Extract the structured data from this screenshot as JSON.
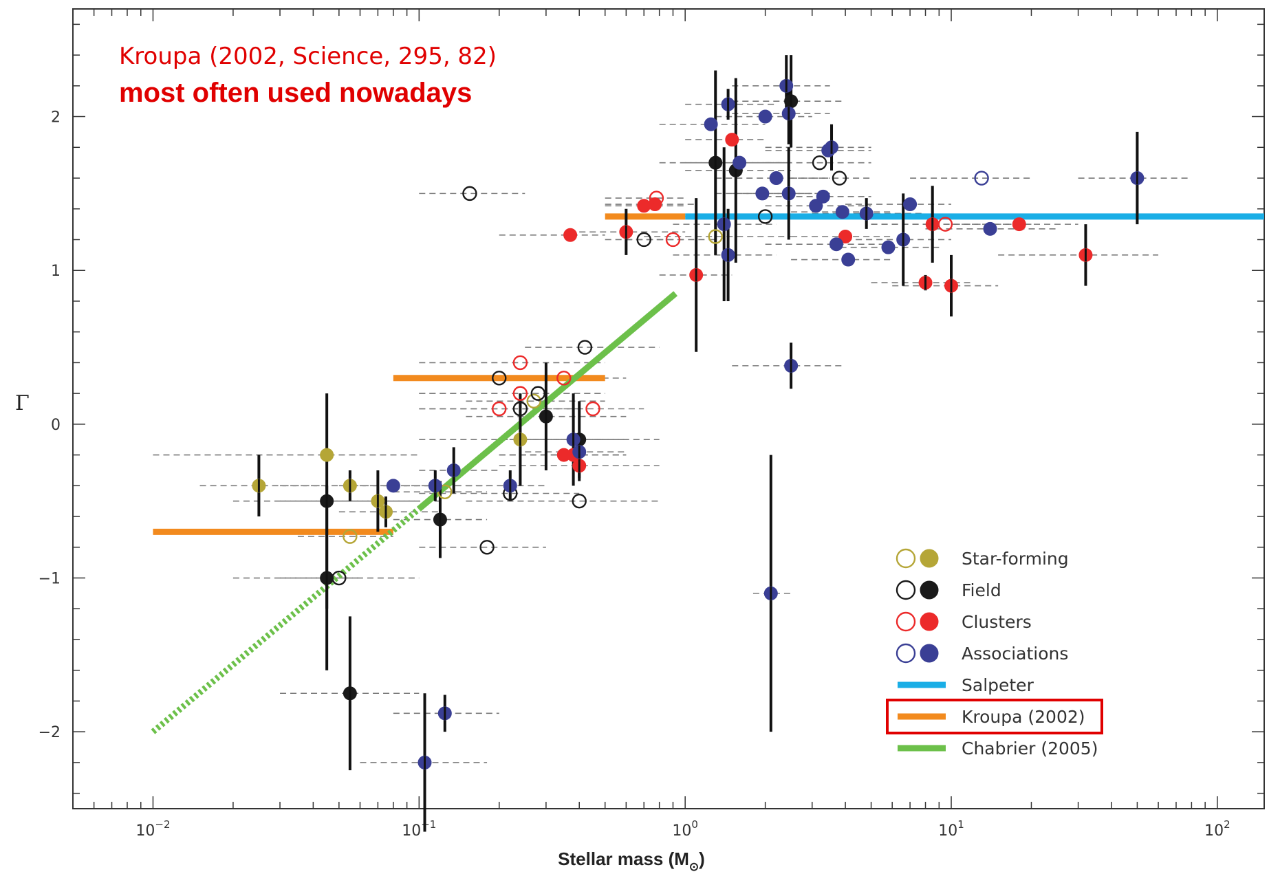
{
  "chart_data": {
    "type": "scatter",
    "xlabel": "Stellar mass (M",
    "xlabel_sub": "⊙",
    "xlabel_close": ")",
    "ylabel": "Γ",
    "xscale": "log",
    "xlim": [
      0.005,
      150
    ],
    "ylim": [
      -2.5,
      2.7
    ],
    "x_ticks": [
      {
        "value": 0.01,
        "base": "10",
        "exp": "−2"
      },
      {
        "value": 0.1,
        "base": "10",
        "exp": "−1"
      },
      {
        "value": 1,
        "base": "10",
        "exp": "0"
      },
      {
        "value": 10,
        "base": "10",
        "exp": "1"
      },
      {
        "value": 100,
        "base": "10",
        "exp": "2"
      }
    ],
    "y_ticks": [
      {
        "value": -2,
        "label": "−2"
      },
      {
        "value": -1,
        "label": "−1"
      },
      {
        "value": 0,
        "label": "0"
      },
      {
        "value": 1,
        "label": "1"
      },
      {
        "value": 2,
        "label": "2"
      }
    ],
    "annotations": [
      {
        "text": "Kroupa (2002, Science, 295, 82)",
        "style": "normal"
      },
      {
        "text": "most often used nowadays",
        "style": "bold"
      }
    ],
    "categories": [
      {
        "name": "Star-forming",
        "color": "#b5a637"
      },
      {
        "name": "Field",
        "color": "#1a1a1a"
      },
      {
        "name": "Clusters",
        "color": "#ec2a2a"
      },
      {
        "name": "Associations",
        "color": "#3a3f95"
      }
    ],
    "lines": [
      {
        "name": "Salpeter",
        "color": "#1aaee6",
        "style": "solid",
        "segments": [
          {
            "x": [
              1,
              150
            ],
            "y": [
              1.35,
              1.35
            ]
          }
        ]
      },
      {
        "name": "Kroupa (2002)",
        "color": "#f28a1e",
        "style": "solid",
        "highlight": true,
        "segments": [
          {
            "x": [
              0.01,
              0.08
            ],
            "y": [
              -0.7,
              -0.7
            ]
          },
          {
            "x": [
              0.08,
              0.5
            ],
            "y": [
              0.3,
              0.3
            ]
          },
          {
            "x": [
              0.5,
              1
            ],
            "y": [
              1.35,
              1.35
            ]
          }
        ]
      },
      {
        "name": "Chabrier (2005)",
        "color": "#6cc04a",
        "style": "solid",
        "segments": [
          {
            "x": [
              0.1,
              0.92
            ],
            "y": [
              -0.55,
              0.85
            ]
          }
        ]
      },
      {
        "name": "",
        "color": "#6cc04a",
        "style": "dotted",
        "segments": [
          {
            "x": [
              0.01,
              0.1
            ],
            "y": [
              -2.0,
              -0.55
            ]
          }
        ]
      }
    ],
    "points": [
      {
        "c": 0,
        "f": 1,
        "x": 0.025,
        "y": -0.4,
        "xlo": 0.015,
        "xhi": 0.045,
        "err": 0.2
      },
      {
        "c": 0,
        "f": 1,
        "x": 0.045,
        "y": -0.2,
        "xlo": 0.01,
        "xhi": 0.1,
        "err": 0
      },
      {
        "c": 0,
        "f": 1,
        "x": 0.055,
        "y": -0.4,
        "xlo": 0.03,
        "xhi": 0.11,
        "err": 0.1
      },
      {
        "c": 0,
        "f": 1,
        "x": 0.07,
        "y": -0.5,
        "xlo": 0.03,
        "xhi": 0.12,
        "err": 0.2
      },
      {
        "c": 0,
        "f": 1,
        "x": 0.075,
        "y": -0.57,
        "xlo": 0.05,
        "xhi": 0.12,
        "err": 0.1
      },
      {
        "c": 0,
        "f": 1,
        "x": 0.24,
        "y": -0.1,
        "xlo": 0.1,
        "xhi": 0.5,
        "err": 0.3
      },
      {
        "c": 0,
        "f": 0,
        "x": 0.055,
        "y": -0.73,
        "xlo": 0.035,
        "xhi": 0.08,
        "err": 0
      },
      {
        "c": 0,
        "f": 0,
        "x": 0.125,
        "y": -0.44,
        "xlo": 0.08,
        "xhi": 0.18,
        "err": 0
      },
      {
        "c": 0,
        "f": 0,
        "x": 0.27,
        "y": 0.15,
        "xlo": 0.15,
        "xhi": 0.5,
        "err": 0
      },
      {
        "c": 0,
        "f": 0,
        "x": 1.3,
        "y": 1.22,
        "xlo": 0.7,
        "xhi": 2.5,
        "err": 0
      },
      {
        "c": 1,
        "f": 1,
        "x": 0.045,
        "y": -0.5,
        "xlo": 0.02,
        "xhi": 0.1,
        "err": 0.7
      },
      {
        "c": 1,
        "f": 1,
        "x": 0.045,
        "y": -1.0,
        "xlo": 0.03,
        "xhi": 0.06,
        "err": 0.6
      },
      {
        "c": 1,
        "f": 1,
        "x": 0.055,
        "y": -1.75,
        "xlo": 0.03,
        "xhi": 0.1,
        "err": 0.5
      },
      {
        "c": 1,
        "f": 1,
        "x": 0.12,
        "y": -0.62,
        "xlo": 0.08,
        "xhi": 0.18,
        "err": 0.25
      },
      {
        "c": 1,
        "f": 1,
        "x": 0.3,
        "y": 0.05,
        "xlo": 0.15,
        "xhi": 0.6,
        "err": 0.35
      },
      {
        "c": 1,
        "f": 1,
        "x": 0.4,
        "y": -0.1,
        "xlo": 0.2,
        "xhi": 0.8,
        "err": 0.25
      },
      {
        "c": 1,
        "f": 1,
        "x": 1.3,
        "y": 1.7,
        "xlo": 0.8,
        "xhi": 2.5,
        "err": 0.6
      },
      {
        "c": 1,
        "f": 1,
        "x": 1.55,
        "y": 1.65,
        "xlo": 1.0,
        "xhi": 2.5,
        "err": 0.6
      },
      {
        "c": 1,
        "f": 1,
        "x": 2.5,
        "y": 2.1,
        "xlo": 1.5,
        "xhi": 4.0,
        "err": 0.3
      },
      {
        "c": 1,
        "f": 0,
        "x": 0.155,
        "y": 1.5,
        "xlo": 0.1,
        "xhi": 0.25,
        "err": 0
      },
      {
        "c": 1,
        "f": 0,
        "x": 0.05,
        "y": -1.0,
        "xlo": 0.02,
        "xhi": 0.1,
        "err": 0
      },
      {
        "c": 1,
        "f": 0,
        "x": 0.18,
        "y": -0.8,
        "xlo": 0.1,
        "xhi": 0.3,
        "err": 0
      },
      {
        "c": 1,
        "f": 0,
        "x": 0.2,
        "y": 0.3,
        "xlo": 0.1,
        "xhi": 0.4,
        "err": 0
      },
      {
        "c": 1,
        "f": 0,
        "x": 0.22,
        "y": -0.45,
        "xlo": 0.1,
        "xhi": 0.4,
        "err": 0
      },
      {
        "c": 1,
        "f": 0,
        "x": 0.24,
        "y": 0.1,
        "xlo": 0.1,
        "xhi": 0.4,
        "err": 0
      },
      {
        "c": 1,
        "f": 0,
        "x": 0.28,
        "y": 0.2,
        "xlo": 0.1,
        "xhi": 0.5,
        "err": 0
      },
      {
        "c": 1,
        "f": 0,
        "x": 0.4,
        "y": -0.5,
        "xlo": 0.15,
        "xhi": 0.8,
        "err": 0
      },
      {
        "c": 1,
        "f": 0,
        "x": 0.42,
        "y": 0.5,
        "xlo": 0.25,
        "xhi": 0.8,
        "err": 0
      },
      {
        "c": 1,
        "f": 0,
        "x": 0.7,
        "y": 1.2,
        "xlo": 0.5,
        "xhi": 1.0,
        "err": 0
      },
      {
        "c": 1,
        "f": 0,
        "x": 2.0,
        "y": 1.35,
        "xlo": 1.0,
        "xhi": 3.5,
        "err": 0
      },
      {
        "c": 1,
        "f": 0,
        "x": 3.2,
        "y": 1.7,
        "xlo": 2.0,
        "xhi": 5.0,
        "err": 0
      },
      {
        "c": 1,
        "f": 0,
        "x": 3.8,
        "y": 1.6,
        "xlo": 2.5,
        "xhi": 5.0,
        "err": 0
      },
      {
        "c": 2,
        "f": 1,
        "x": 0.37,
        "y": 1.23,
        "xlo": 0.2,
        "xhi": 0.5,
        "err": 0
      },
      {
        "c": 2,
        "f": 1,
        "x": 0.6,
        "y": 1.25,
        "xlo": 0.4,
        "xhi": 1.0,
        "err": 0.15
      },
      {
        "c": 2,
        "f": 1,
        "x": 0.7,
        "y": 1.42,
        "xlo": 0.5,
        "xhi": 1.0,
        "err": 0
      },
      {
        "c": 2,
        "f": 1,
        "x": 0.77,
        "y": 1.43,
        "xlo": 0.5,
        "xhi": 1.1,
        "err": 0
      },
      {
        "c": 2,
        "f": 1,
        "x": 1.1,
        "y": 0.97,
        "xlo": 0.8,
        "xhi": 1.5,
        "err": 0.5
      },
      {
        "c": 2,
        "f": 1,
        "x": 1.5,
        "y": 1.85,
        "xlo": 1.0,
        "xhi": 2.0,
        "err": 0
      },
      {
        "c": 2,
        "f": 1,
        "x": 0.35,
        "y": -0.2,
        "xlo": 0.2,
        "xhi": 0.6,
        "err": 0
      },
      {
        "c": 2,
        "f": 1,
        "x": 0.38,
        "y": -0.2,
        "xlo": 0.2,
        "xhi": 0.6,
        "err": 0
      },
      {
        "c": 2,
        "f": 1,
        "x": 0.4,
        "y": -0.27,
        "xlo": 0.2,
        "xhi": 0.8,
        "err": 0.1
      },
      {
        "c": 2,
        "f": 1,
        "x": 4.0,
        "y": 1.22,
        "xlo": 2.5,
        "xhi": 6.0,
        "err": 0
      },
      {
        "c": 2,
        "f": 1,
        "x": 8.0,
        "y": 0.92,
        "xlo": 5.0,
        "xhi": 12.0,
        "err": 0.05
      },
      {
        "c": 2,
        "f": 1,
        "x": 8.5,
        "y": 1.3,
        "xlo": 5.0,
        "xhi": 12.0,
        "err": 0.25
      },
      {
        "c": 2,
        "f": 1,
        "x": 10.0,
        "y": 0.9,
        "xlo": 6.0,
        "xhi": 15.0,
        "err": 0.2
      },
      {
        "c": 2,
        "f": 1,
        "x": 18.0,
        "y": 1.3,
        "xlo": 10.0,
        "xhi": 30.0,
        "err": 0
      },
      {
        "c": 2,
        "f": 1,
        "x": 32.0,
        "y": 1.1,
        "xlo": 15.0,
        "xhi": 60.0,
        "err": 0.2
      },
      {
        "c": 2,
        "f": 0,
        "x": 0.24,
        "y": 0.4,
        "xlo": 0.1,
        "xhi": 0.5,
        "err": 0
      },
      {
        "c": 2,
        "f": 0,
        "x": 0.24,
        "y": 0.2,
        "xlo": 0.1,
        "xhi": 0.5,
        "err": 0
      },
      {
        "c": 2,
        "f": 0,
        "x": 0.2,
        "y": 0.1,
        "xlo": 0.1,
        "xhi": 0.3,
        "err": 0
      },
      {
        "c": 2,
        "f": 0,
        "x": 0.35,
        "y": 0.3,
        "xlo": 0.2,
        "xhi": 0.6,
        "err": 0
      },
      {
        "c": 2,
        "f": 0,
        "x": 0.45,
        "y": 0.1,
        "xlo": 0.3,
        "xhi": 0.7,
        "err": 0
      },
      {
        "c": 2,
        "f": 0,
        "x": 0.78,
        "y": 1.47,
        "xlo": 0.5,
        "xhi": 1.0,
        "err": 0
      },
      {
        "c": 2,
        "f": 0,
        "x": 0.9,
        "y": 1.2,
        "xlo": 0.6,
        "xhi": 1.3,
        "err": 0
      },
      {
        "c": 2,
        "f": 0,
        "x": 9.5,
        "y": 1.3,
        "xlo": 5.0,
        "xhi": 20.0,
        "err": 0
      },
      {
        "c": 3,
        "f": 1,
        "x": 0.08,
        "y": -0.4,
        "xlo": 0.05,
        "xhi": 0.12,
        "err": 0
      },
      {
        "c": 3,
        "f": 1,
        "x": 0.115,
        "y": -0.4,
        "xlo": 0.08,
        "xhi": 0.18,
        "err": 0.1
      },
      {
        "c": 3,
        "f": 1,
        "x": 0.135,
        "y": -0.3,
        "xlo": 0.1,
        "xhi": 0.2,
        "err": 0.15
      },
      {
        "c": 3,
        "f": 1,
        "x": 0.22,
        "y": -0.4,
        "xlo": 0.15,
        "xhi": 0.3,
        "err": 0.1
      },
      {
        "c": 3,
        "f": 1,
        "x": 0.105,
        "y": -2.2,
        "xlo": 0.06,
        "xhi": 0.18,
        "err": 0.45
      },
      {
        "c": 3,
        "f": 1,
        "x": 0.125,
        "y": -1.88,
        "xlo": 0.08,
        "xhi": 0.2,
        "err": 0.12
      },
      {
        "c": 3,
        "f": 1,
        "x": 0.38,
        "y": -0.1,
        "xlo": 0.25,
        "xhi": 0.6,
        "err": 0.3
      },
      {
        "c": 3,
        "f": 1,
        "x": 0.4,
        "y": -0.18,
        "xlo": 0.25,
        "xhi": 0.6,
        "err": 0.1
      },
      {
        "c": 3,
        "f": 1,
        "x": 1.25,
        "y": 1.95,
        "xlo": 0.8,
        "xhi": 2.0,
        "err": 0
      },
      {
        "c": 3,
        "f": 1,
        "x": 1.45,
        "y": 2.08,
        "xlo": 1.0,
        "xhi": 2.2,
        "err": 0.1
      },
      {
        "c": 3,
        "f": 1,
        "x": 1.6,
        "y": 1.7,
        "xlo": 1.0,
        "xhi": 2.5,
        "err": 0
      },
      {
        "c": 3,
        "f": 1,
        "x": 1.4,
        "y": 1.3,
        "xlo": 0.9,
        "xhi": 2.2,
        "err": 0.5
      },
      {
        "c": 3,
        "f": 1,
        "x": 1.45,
        "y": 1.1,
        "xlo": 0.9,
        "xhi": 2.2,
        "err": 0.3
      },
      {
        "c": 3,
        "f": 1,
        "x": 1.95,
        "y": 1.5,
        "xlo": 1.3,
        "xhi": 3.0,
        "err": 0
      },
      {
        "c": 3,
        "f": 1,
        "x": 2.0,
        "y": 2.0,
        "xlo": 1.3,
        "xhi": 3.0,
        "err": 0
      },
      {
        "c": 3,
        "f": 1,
        "x": 2.2,
        "y": 1.6,
        "xlo": 1.3,
        "xhi": 3.5,
        "err": 0
      },
      {
        "c": 3,
        "f": 1,
        "x": 2.4,
        "y": 2.2,
        "xlo": 1.5,
        "xhi": 3.5,
        "err": 0.2
      },
      {
        "c": 3,
        "f": 1,
        "x": 2.45,
        "y": 2.02,
        "xlo": 1.5,
        "xhi": 3.5,
        "err": 0.2
      },
      {
        "c": 3,
        "f": 1,
        "x": 2.45,
        "y": 1.5,
        "xlo": 1.5,
        "xhi": 3.5,
        "err": 0.3
      },
      {
        "c": 3,
        "f": 1,
        "x": 2.1,
        "y": -1.1,
        "xlo": 1.8,
        "xhi": 2.5,
        "err": 0.9
      },
      {
        "c": 3,
        "f": 1,
        "x": 2.5,
        "y": 0.38,
        "xlo": 1.5,
        "xhi": 4.0,
        "err": 0.15
      },
      {
        "c": 3,
        "f": 1,
        "x": 3.1,
        "y": 1.42,
        "xlo": 2.0,
        "xhi": 5.0,
        "err": 0
      },
      {
        "c": 3,
        "f": 1,
        "x": 3.3,
        "y": 1.48,
        "xlo": 2.0,
        "xhi": 5.0,
        "err": 0
      },
      {
        "c": 3,
        "f": 1,
        "x": 3.45,
        "y": 1.78,
        "xlo": 2.0,
        "xhi": 5.0,
        "err": 0
      },
      {
        "c": 3,
        "f": 1,
        "x": 3.55,
        "y": 1.8,
        "xlo": 2.0,
        "xhi": 5.0,
        "err": 0.15
      },
      {
        "c": 3,
        "f": 1,
        "x": 3.7,
        "y": 1.17,
        "xlo": 2.0,
        "xhi": 6.0,
        "err": 0
      },
      {
        "c": 3,
        "f": 1,
        "x": 3.9,
        "y": 1.38,
        "xlo": 2.5,
        "xhi": 6.0,
        "err": 0
      },
      {
        "c": 3,
        "f": 1,
        "x": 4.1,
        "y": 1.07,
        "xlo": 2.5,
        "xhi": 6.0,
        "err": 0
      },
      {
        "c": 3,
        "f": 1,
        "x": 4.8,
        "y": 1.37,
        "xlo": 3.0,
        "xhi": 8.0,
        "err": 0.1
      },
      {
        "c": 3,
        "f": 1,
        "x": 5.8,
        "y": 1.15,
        "xlo": 3.5,
        "xhi": 9.0,
        "err": 0
      },
      {
        "c": 3,
        "f": 1,
        "x": 6.6,
        "y": 1.2,
        "xlo": 4.0,
        "xhi": 10.0,
        "err": 0.3
      },
      {
        "c": 3,
        "f": 1,
        "x": 7.0,
        "y": 1.43,
        "xlo": 4.0,
        "xhi": 10.0,
        "err": 0
      },
      {
        "c": 3,
        "f": 1,
        "x": 14.0,
        "y": 1.27,
        "xlo": 8.0,
        "xhi": 25.0,
        "err": 0
      },
      {
        "c": 3,
        "f": 1,
        "x": 50.0,
        "y": 1.6,
        "xlo": 30.0,
        "xhi": 80.0,
        "err": 0.3
      },
      {
        "c": 3,
        "f": 0,
        "x": 13.0,
        "y": 1.6,
        "xlo": 7.0,
        "xhi": 20.0,
        "err": 0
      }
    ],
    "legend_position": "bottom-right",
    "legend_highlight": "Kroupa (2002)"
  }
}
